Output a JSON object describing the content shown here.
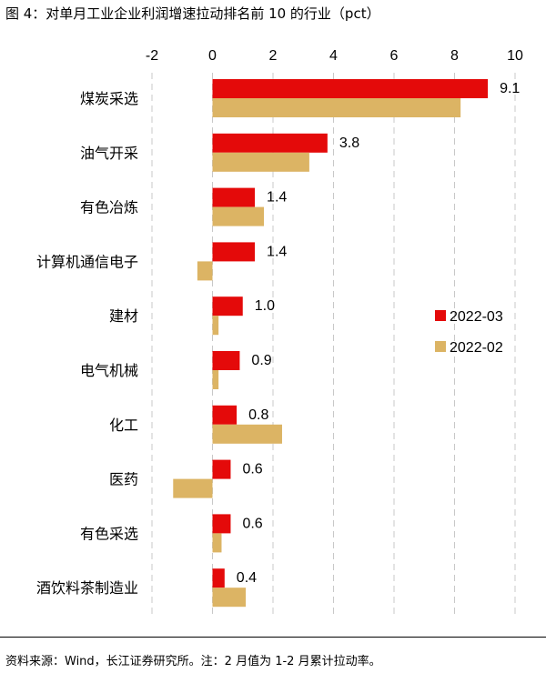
{
  "header": {
    "title": "图 4：对单月工业企业利润增速拉动排名前 10 的行业（pct）"
  },
  "footer": {
    "source": "资料来源：Wind，长江证券研究所。注：2 月值为 1-2 月累计拉动率。"
  },
  "colors": {
    "series_2022_03": "#e40a0a",
    "series_2022_02": "#dcb464",
    "grid": "#c8c8c8"
  },
  "chart_data": {
    "type": "bar",
    "orientation": "horizontal",
    "title": "图 4：对单月工业企业利润增速拉动排名前 10 的行业（pct）",
    "xlim": [
      -2,
      10
    ],
    "xticks": [
      -2,
      0,
      2,
      4,
      6,
      8,
      10
    ],
    "tick_labels": [
      "-2",
      "0",
      "2",
      "4",
      "6",
      "8",
      "10"
    ],
    "grid": "vertical dashed",
    "legend_position": "right",
    "categories": [
      "煤炭采选",
      "油气开采",
      "有色冶炼",
      "计算机通信电子",
      "建材",
      "电气机械",
      "化工",
      "医药",
      "有色采选",
      "酒饮料茶制造业"
    ],
    "series": [
      {
        "name": "2022-03",
        "values": [
          9.1,
          3.8,
          1.4,
          1.4,
          1.0,
          0.9,
          0.8,
          0.6,
          0.6,
          0.4
        ],
        "labels": [
          "9.1",
          "3.8",
          "1.4",
          "1.4",
          "1.0",
          "0.9",
          "0.8",
          "0.6",
          "0.6",
          "0.4"
        ]
      },
      {
        "name": "2022-02",
        "values": [
          8.2,
          3.2,
          1.7,
          -0.5,
          0.2,
          0.2,
          2.3,
          -1.3,
          0.3,
          1.1
        ]
      }
    ]
  }
}
